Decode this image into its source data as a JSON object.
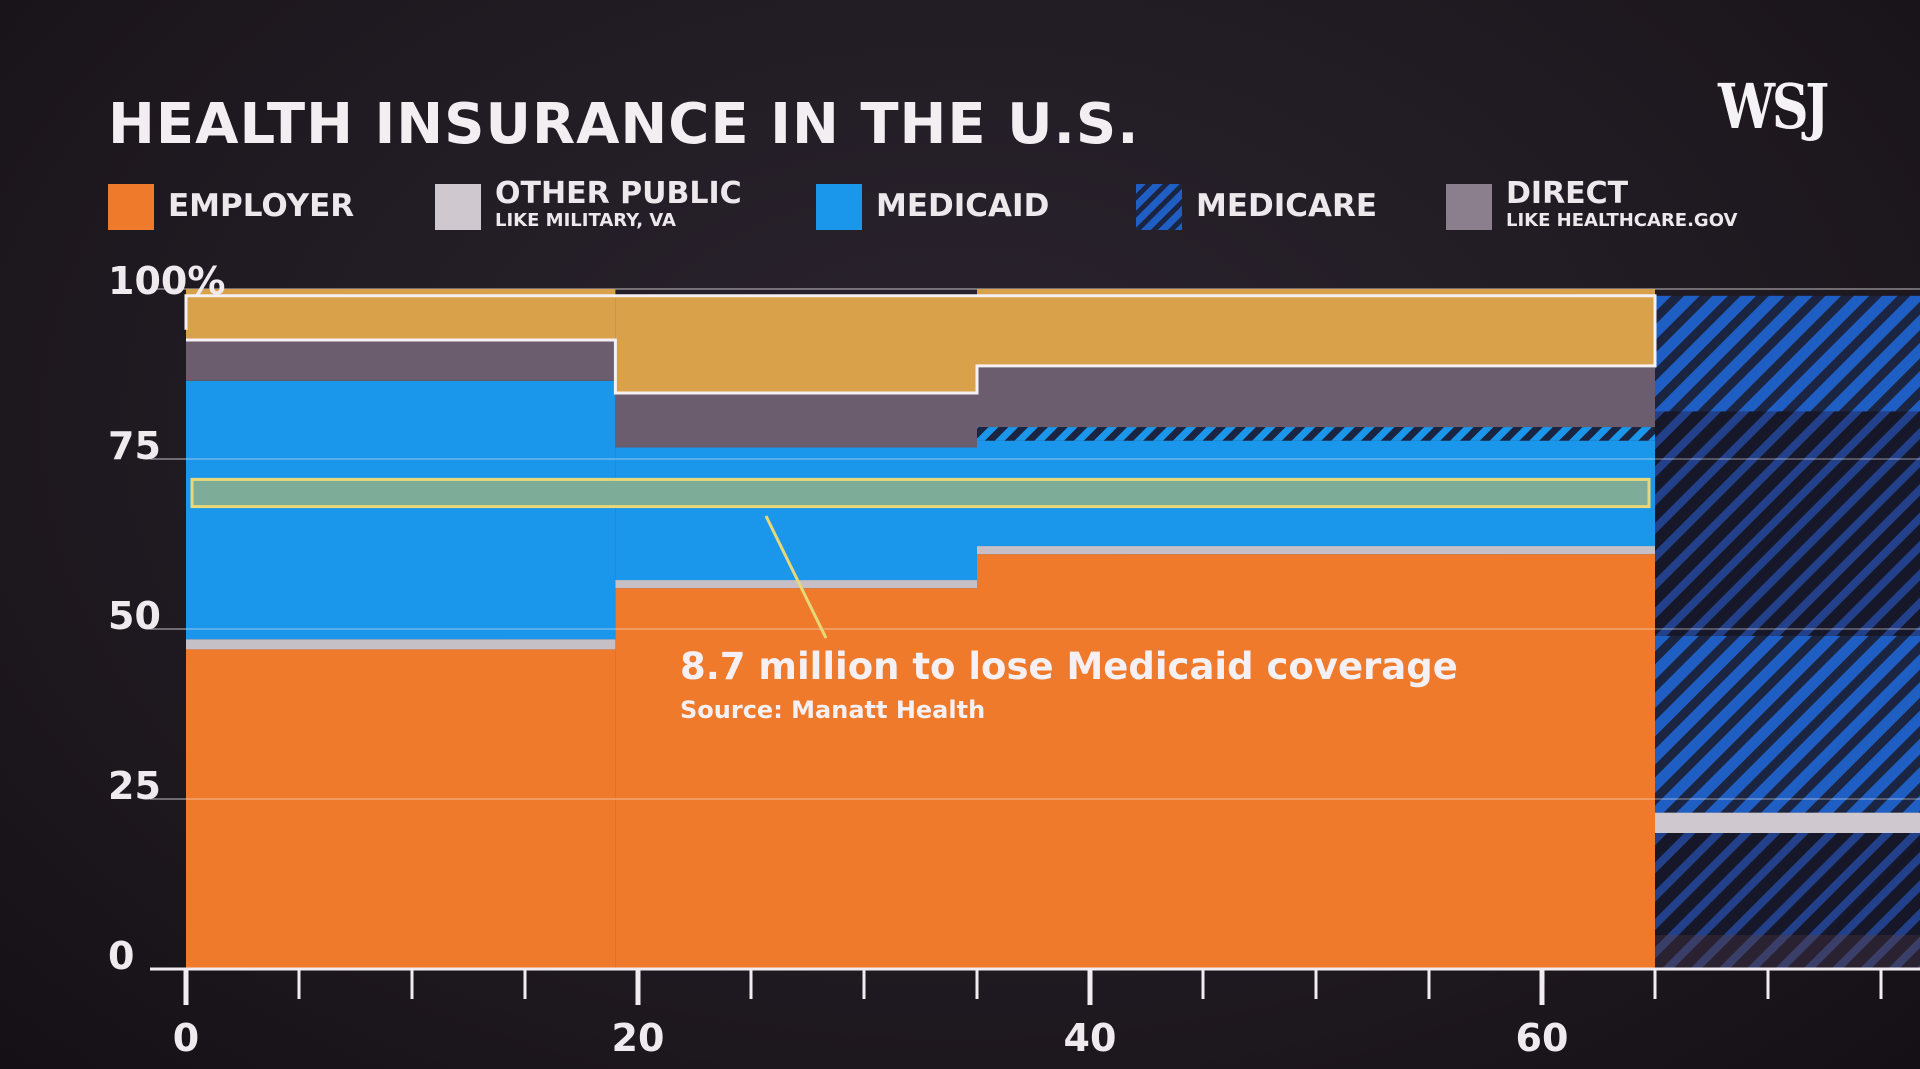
{
  "header": {
    "title": "HEALTH INSURANCE IN THE U.S.",
    "logo": "WSJ"
  },
  "legend": [
    {
      "key": "employer",
      "label": "EMPLOYER",
      "sublabel": "",
      "color": "#ef7a2b",
      "pattern": "solid"
    },
    {
      "key": "other_public",
      "label": "OTHER PUBLIC",
      "sublabel": "LIKE MILITARY, VA",
      "color": "#cfc9cf",
      "pattern": "solid"
    },
    {
      "key": "medicaid",
      "label": "MEDICAID",
      "sublabel": "",
      "color": "#1a97ea",
      "pattern": "solid"
    },
    {
      "key": "medicare",
      "label": "MEDICARE",
      "sublabel": "",
      "color": "#1f5fc4",
      "pattern": "hatched"
    },
    {
      "key": "direct",
      "label": "DIRECT",
      "sublabel": "LIKE HEALTHCARE.GOV",
      "color": "#8c7f8d",
      "pattern": "solid"
    }
  ],
  "annotation": {
    "text": "8.7 million to lose Medicaid coverage",
    "source": "Source: Manatt Health"
  },
  "colors": {
    "background": "#1f1a20",
    "employer": "#ef7a2b",
    "other_public": "#cfc9cf",
    "medicaid": "#1a97ea",
    "medicare": "#1f5fc4",
    "medicare_dark": "#1b2440",
    "direct": "#6b5d6d",
    "uninsured": "#d9a24a",
    "highlight": "#e8d878"
  },
  "chart_data": {
    "type": "area",
    "subtype": "stacked-step-percent",
    "title": "HEALTH INSURANCE IN THE U.S.",
    "xlabel": "",
    "ylabel": "",
    "ylim": [
      0,
      100
    ],
    "xlim": [
      0,
      76
    ],
    "x_ticks": [
      0,
      20,
      40,
      60
    ],
    "x_minor_ticks": [
      5,
      10,
      15,
      25,
      30,
      35,
      45,
      50,
      55,
      65,
      70,
      75
    ],
    "y_ticks": [
      0,
      25,
      50,
      75
    ],
    "y_tick_labels": [
      "0",
      "25",
      "50",
      "75"
    ],
    "y_top_label": "100%",
    "grid": true,
    "legend_position": "top",
    "age_groups": [
      {
        "x_start": 0,
        "x_end": 19
      },
      {
        "x_start": 19,
        "x_end": 35
      },
      {
        "x_start": 35,
        "x_end": 65
      },
      {
        "x_start": 65,
        "x_end": 76
      }
    ],
    "series": [
      {
        "name": "EMPLOYER",
        "key": "employer",
        "values": [
          47,
          56,
          61,
          0
        ]
      },
      {
        "name": "OTHER PUBLIC",
        "key": "other_public",
        "values": [
          1.5,
          1.2,
          1.2,
          3
        ]
      },
      {
        "name": "MEDICAID",
        "key": "medicaid",
        "values": [
          38,
          19.5,
          15.5,
          25
        ]
      },
      {
        "name": "MEDICARE",
        "key": "medicare",
        "values": [
          0,
          0,
          2,
          62
        ]
      },
      {
        "name": "DIRECT",
        "key": "direct",
        "values": [
          6,
          8,
          9,
          7
        ]
      },
      {
        "name": "",
        "key": "uninsured",
        "values": [
          7.5,
          14.3,
          11.3,
          3
        ]
      }
    ],
    "medicare_65plus_breakdown": [
      {
        "y_from": 0,
        "y_to": 5,
        "style": "orange-hatched"
      },
      {
        "y_from": 5,
        "y_to": 20,
        "style": "dark-hatched"
      },
      {
        "y_from": 20,
        "y_to": 23,
        "style": "other-public"
      },
      {
        "y_from": 23,
        "y_to": 49,
        "style": "medicaid-hatched"
      },
      {
        "y_from": 49,
        "y_to": 82,
        "style": "dark-hatched"
      },
      {
        "y_from": 82,
        "y_to": 99,
        "style": "medicaid-hatched"
      }
    ],
    "highlight_band": {
      "y_from": 68,
      "y_to": 72,
      "x_from": 0,
      "x_to": 65
    },
    "annotation": "8.7 million to lose Medicaid coverage",
    "annotation_source": "Source: Manatt Health"
  }
}
